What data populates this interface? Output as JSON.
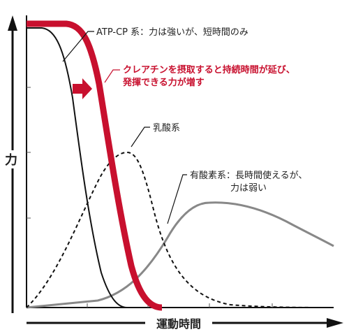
{
  "y_axis_label": "力",
  "x_axis_label": "運動時間",
  "annotations": {
    "atp_cp": "ATP-CP 系：力は強いが、短時間のみ",
    "creatine": [
      "クレアチンを摂取すると持続時間が延び、",
      "発揮できる力が増す"
    ],
    "lactic": "乳酸系",
    "aerobic": [
      "有酸素系：長時間使えるが、",
      "力は弱い"
    ]
  }
}
